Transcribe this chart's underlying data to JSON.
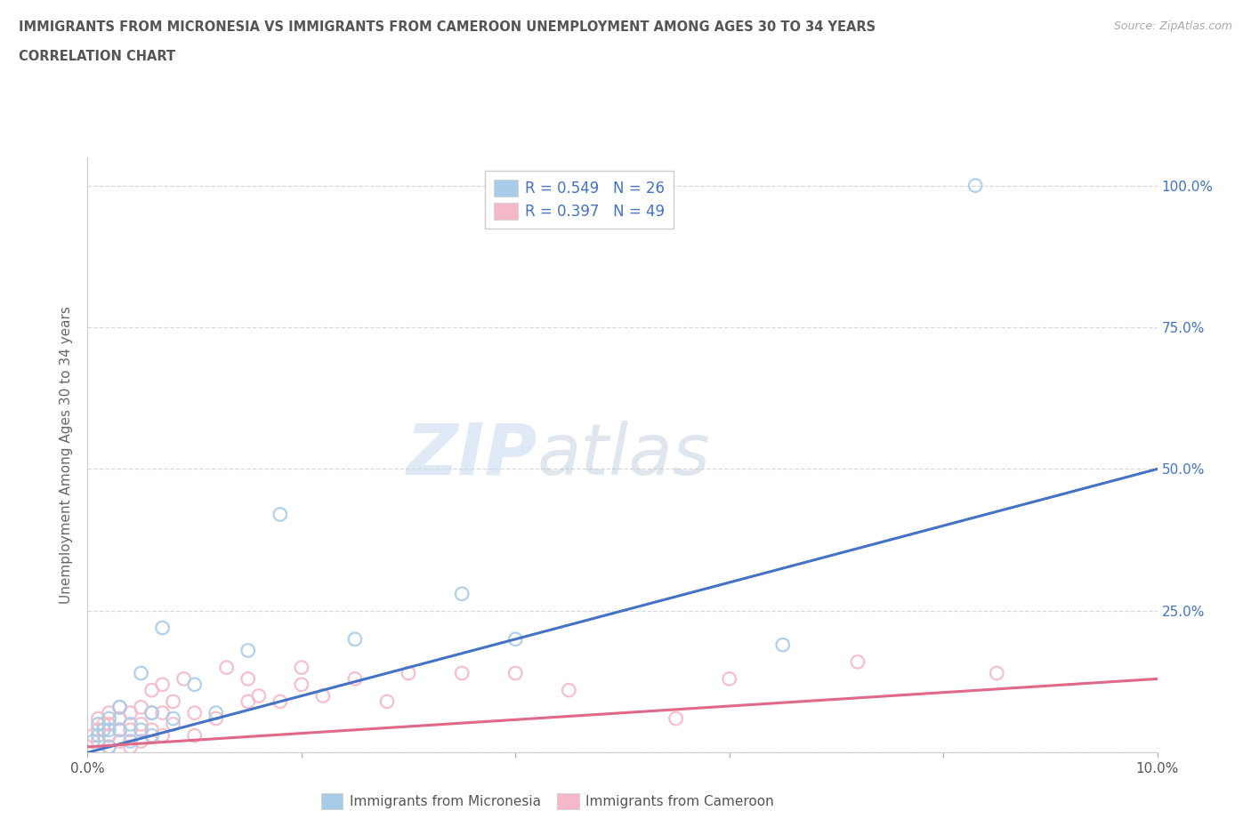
{
  "title_line1": "IMMIGRANTS FROM MICRONESIA VS IMMIGRANTS FROM CAMEROON UNEMPLOYMENT AMONG AGES 30 TO 34 YEARS",
  "title_line2": "CORRELATION CHART",
  "source_text": "Source: ZipAtlas.com",
  "ylabel": "Unemployment Among Ages 30 to 34 years",
  "xlim": [
    0.0,
    0.1
  ],
  "ylim": [
    0.0,
    1.05
  ],
  "micronesia_color": "#a8cce8",
  "cameroon_color": "#f5b8c8",
  "trend_micronesia_color": "#4472c4",
  "trend_cameroon_color": "#e06888",
  "background_color": "#ffffff",
  "grid_color": "#d8d8d8",
  "watermark_zip": "ZIP",
  "watermark_atlas": "atlas",
  "R_micronesia": "0.549",
  "N_micronesia": "26",
  "R_cameroon": "0.397",
  "N_cameroon": "49",
  "legend_color": "#4472c4",
  "micronesia_x": [
    0.0005,
    0.001,
    0.001,
    0.0015,
    0.002,
    0.002,
    0.002,
    0.003,
    0.003,
    0.004,
    0.004,
    0.005,
    0.005,
    0.006,
    0.006,
    0.007,
    0.008,
    0.01,
    0.012,
    0.015,
    0.018,
    0.025,
    0.035,
    0.04,
    0.065,
    0.083
  ],
  "micronesia_y": [
    0.02,
    0.03,
    0.05,
    0.04,
    0.01,
    0.04,
    0.06,
    0.04,
    0.08,
    0.02,
    0.05,
    0.04,
    0.14,
    0.03,
    0.07,
    0.22,
    0.06,
    0.12,
    0.07,
    0.18,
    0.42,
    0.2,
    0.28,
    0.2,
    0.19,
    1.0
  ],
  "cameroon_x": [
    0.0005,
    0.001,
    0.001,
    0.001,
    0.0015,
    0.002,
    0.002,
    0.002,
    0.002,
    0.003,
    0.003,
    0.003,
    0.003,
    0.004,
    0.004,
    0.004,
    0.005,
    0.005,
    0.005,
    0.006,
    0.006,
    0.006,
    0.007,
    0.007,
    0.007,
    0.008,
    0.008,
    0.009,
    0.01,
    0.01,
    0.012,
    0.013,
    0.015,
    0.015,
    0.016,
    0.018,
    0.02,
    0.02,
    0.022,
    0.025,
    0.028,
    0.03,
    0.035,
    0.04,
    0.045,
    0.055,
    0.06,
    0.072,
    0.085
  ],
  "cameroon_y": [
    0.03,
    0.02,
    0.04,
    0.06,
    0.05,
    0.01,
    0.03,
    0.05,
    0.07,
    0.02,
    0.04,
    0.06,
    0.08,
    0.01,
    0.04,
    0.07,
    0.02,
    0.05,
    0.08,
    0.04,
    0.07,
    0.11,
    0.03,
    0.07,
    0.12,
    0.05,
    0.09,
    0.13,
    0.03,
    0.07,
    0.06,
    0.15,
    0.09,
    0.13,
    0.1,
    0.09,
    0.12,
    0.15,
    0.1,
    0.13,
    0.09,
    0.14,
    0.14,
    0.14,
    0.11,
    0.06,
    0.13,
    0.16,
    0.14
  ]
}
